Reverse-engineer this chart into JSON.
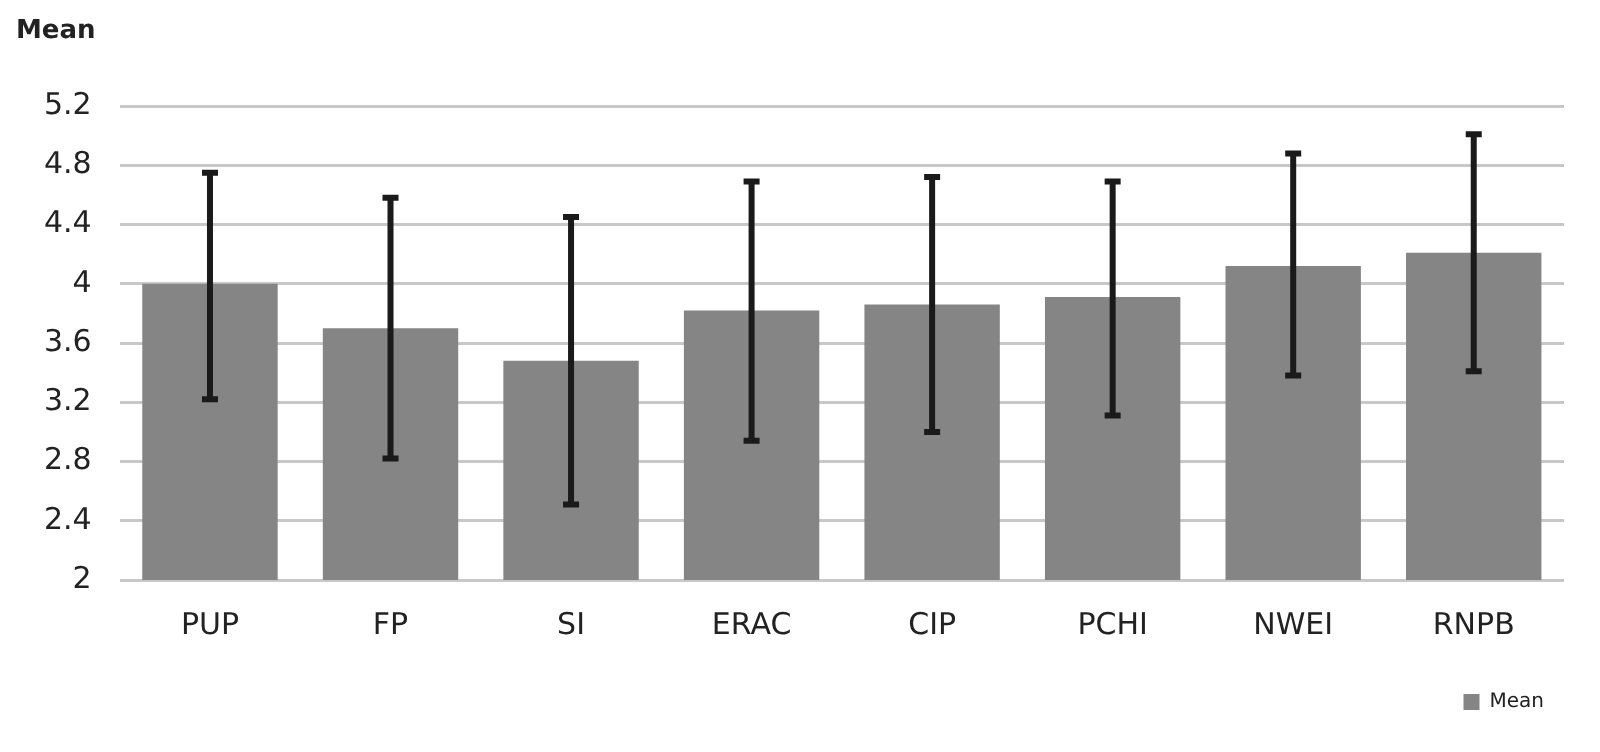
{
  "chart_data": {
    "type": "bar",
    "ylabel": "Mean",
    "categories": [
      "PUP",
      "FP",
      "SI",
      "ERAC",
      "CIP",
      "PCHI",
      "NWEI",
      "RNPB"
    ],
    "series": [
      {
        "name": "Mean",
        "color": "#858585",
        "values": [
          4.0,
          3.7,
          3.48,
          3.82,
          3.86,
          3.91,
          4.12,
          4.21
        ],
        "errors": [
          [
            3.22,
            4.75
          ],
          [
            2.82,
            4.58
          ],
          [
            2.51,
            4.45
          ],
          [
            2.94,
            4.69
          ],
          [
            3.0,
            4.72
          ],
          [
            3.11,
            4.69
          ],
          [
            3.38,
            4.88
          ],
          [
            3.41,
            5.01
          ]
        ]
      }
    ],
    "ylim": [
      2,
      5.2
    ],
    "yticks": [
      2,
      2.4,
      2.8,
      3.2,
      3.6,
      4,
      4.4,
      4.8,
      5.2
    ],
    "grid": "y",
    "legend": "bottom right"
  }
}
